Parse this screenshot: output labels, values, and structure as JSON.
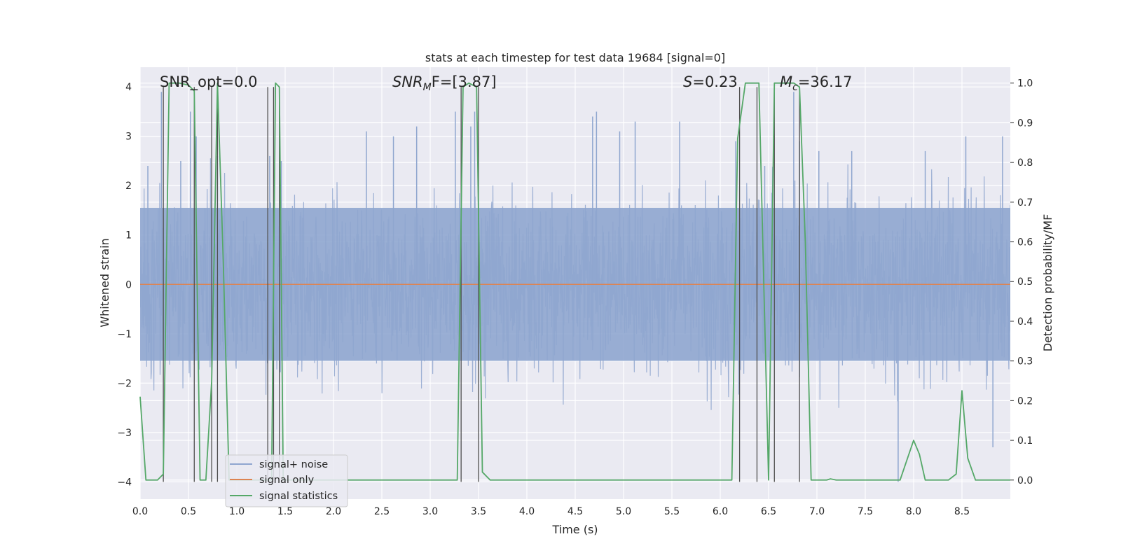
{
  "chart_data": {
    "type": "line",
    "title": "stats at each timestep for test data 19684 [signal=0]",
    "xlabel": "Time (s)",
    "ylabel": "Whitened strain",
    "y2label": "Detection probability/MF",
    "xlim": [
      0,
      9.0
    ],
    "ylim": [
      -4.35,
      4.4
    ],
    "y2lim": [
      -0.048,
      1.04
    ],
    "xticks": [
      "0.0",
      "0.5",
      "1.0",
      "1.5",
      "2.0",
      "2.5",
      "3.0",
      "3.5",
      "4.0",
      "4.5",
      "5.0",
      "5.5",
      "6.0",
      "6.5",
      "7.0",
      "7.5",
      "8.0",
      "8.5"
    ],
    "yticks": [
      "4",
      "3",
      "2",
      "1",
      "0",
      "−1",
      "−2",
      "−3",
      "−4"
    ],
    "y2ticks": [
      "1.0",
      "0.9",
      "0.8",
      "0.7",
      "0.6",
      "0.5",
      "0.4",
      "0.3",
      "0.2",
      "0.1",
      "0.0"
    ],
    "grid": true,
    "legend_position": "lower-left",
    "annotations": {
      "snr_opt": "SNR_opt=0.0",
      "snr_mf_base": "SNR",
      "snr_mf_sub": "M",
      "snr_mf_tail": "F=[3.87]",
      "s_base": "S",
      "s_tail": "=0.23",
      "mc_base": "M",
      "mc_sub": "c",
      "mc_tail": "=36.17"
    },
    "series": [
      {
        "name": "signal+ noise",
        "color": "#8fa6cf",
        "axis": "left",
        "kind": "whitened noise, amplitude envelope approx ±2.5 with peaks to ±4",
        "duration_s": 9.0,
        "peak_times": [
          0.08,
          0.22,
          0.42,
          0.52,
          0.58,
          0.8,
          1.34,
          1.46,
          2.34,
          2.62,
          2.86,
          3.26,
          3.42,
          3.46,
          4.68,
          4.72,
          4.96,
          5.12,
          5.58,
          6.16,
          6.46,
          6.76,
          6.82,
          7.02,
          7.36,
          7.84,
          8.12,
          8.54,
          8.82,
          8.92
        ],
        "peak_values": [
          2.4,
          3.9,
          2.5,
          3.5,
          3.0,
          2.6,
          2.6,
          2.5,
          3.1,
          3.0,
          3.2,
          3.5,
          3.2,
          3.5,
          3.4,
          3.5,
          3.1,
          3.3,
          3.3,
          2.9,
          2.4,
          3.9,
          2.9,
          2.7,
          2.7,
          -4.0,
          2.7,
          3.0,
          -3.3,
          3.0
        ]
      },
      {
        "name": "signal only",
        "color": "#dd8452",
        "axis": "left",
        "x": [
          0,
          9.0
        ],
        "y": [
          0,
          0
        ]
      },
      {
        "name": "signal statistics",
        "color": "#55a868",
        "axis": "right",
        "x": [
          0.0,
          0.06,
          0.18,
          0.24,
          0.3,
          0.4,
          0.5,
          0.56,
          0.62,
          0.68,
          0.74,
          0.8,
          0.86,
          0.92,
          1.36,
          1.4,
          1.44,
          1.48,
          1.52,
          3.28,
          3.34,
          3.4,
          3.48,
          3.54,
          3.62,
          6.12,
          6.18,
          6.26,
          6.4,
          6.5,
          6.56,
          6.64,
          6.76,
          6.82,
          6.88,
          6.94,
          7.1,
          7.14,
          7.2,
          7.86,
          8.0,
          8.06,
          8.12,
          8.36,
          8.44,
          8.5,
          8.56,
          8.64,
          9.0
        ],
        "y": [
          0.21,
          0.0,
          0.0,
          0.015,
          1.0,
          1.0,
          0.995,
          0.98,
          0.0,
          0.0,
          0.25,
          1.0,
          0.55,
          0.0,
          0.0,
          1.0,
          0.99,
          0.0,
          0.0,
          0.0,
          0.99,
          1.0,
          0.99,
          0.02,
          0.0,
          0.0,
          0.86,
          1.0,
          1.0,
          0.0,
          1.0,
          1.0,
          1.0,
          0.99,
          0.6,
          0.0,
          0.0,
          0.003,
          0.0,
          0.0,
          0.1,
          0.065,
          0.0,
          0.0,
          0.015,
          0.225,
          0.055,
          0.0,
          0.0
        ]
      }
    ],
    "vertical_lines": {
      "color": "#4f4f4f",
      "x": [
        0.24,
        0.56,
        0.74,
        0.8,
        1.32,
        1.38,
        1.44,
        3.32,
        3.5,
        6.2,
        6.38,
        6.56,
        6.82
      ],
      "y_from": -4.0,
      "y_to": 4.0
    }
  }
}
